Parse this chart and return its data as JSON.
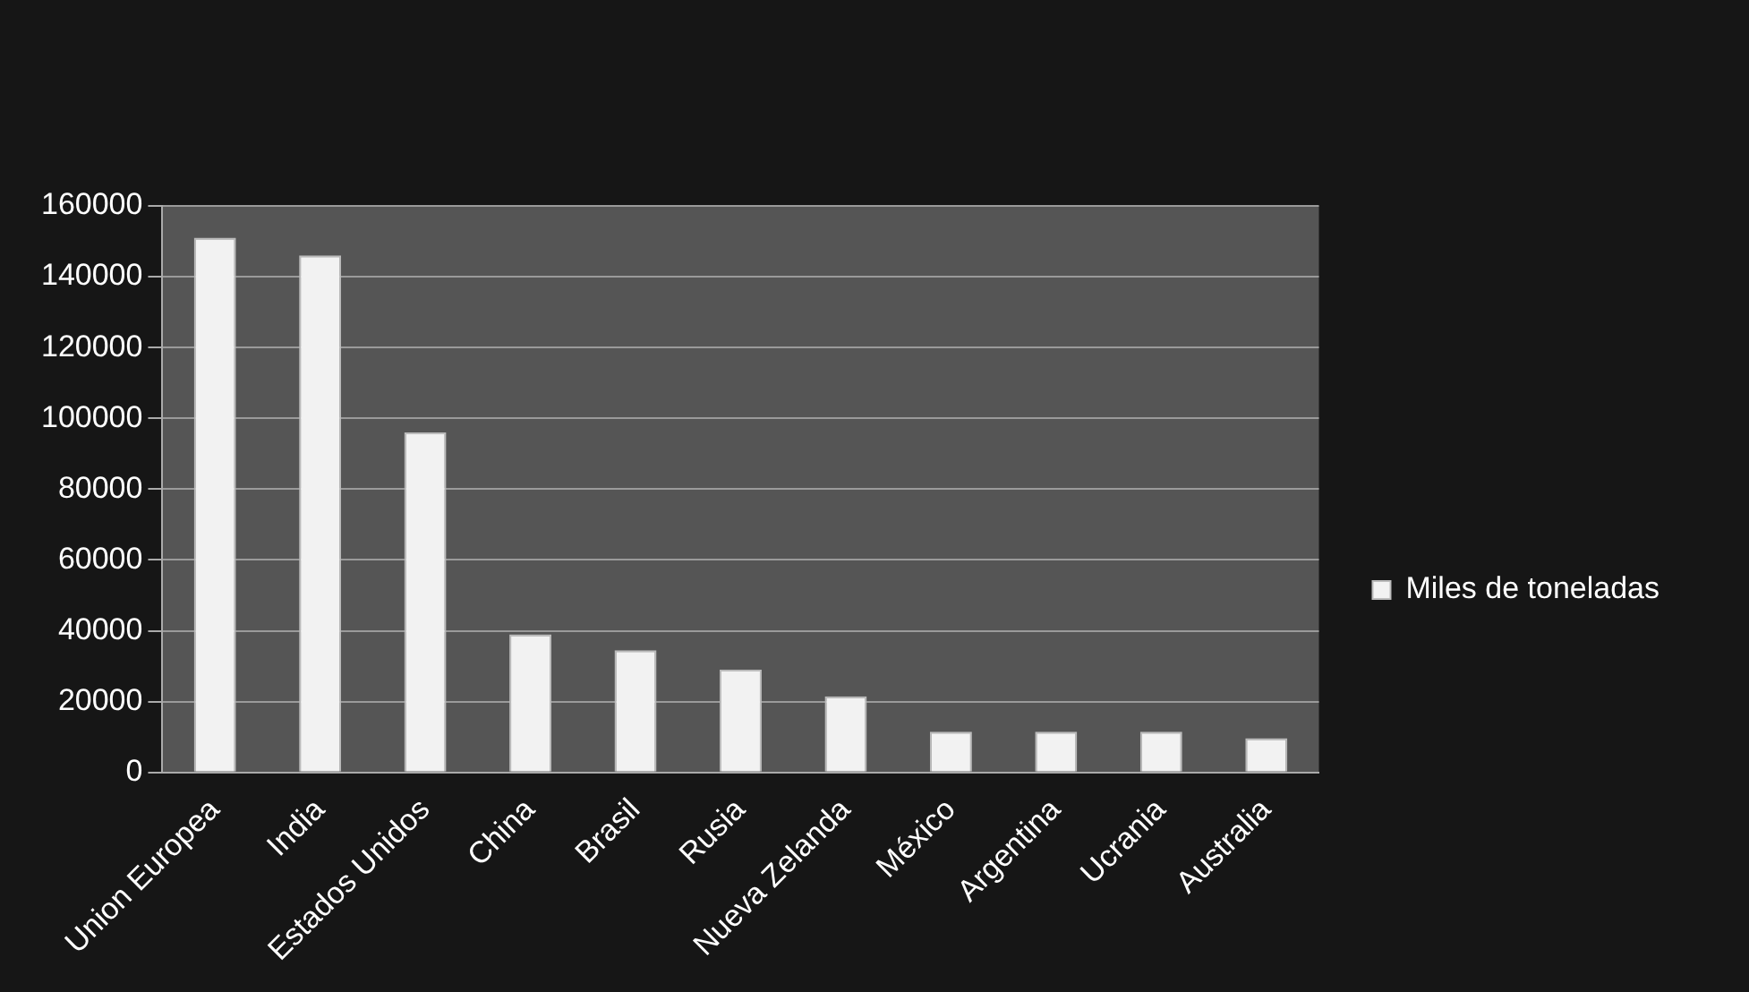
{
  "chart_data": {
    "type": "bar",
    "categories": [
      "Union Europea",
      "India",
      "Estados Unidos",
      "China",
      "Brasil",
      "Rusia",
      "Nueva Zelanda",
      "México",
      "Argentina",
      "Ucrania",
      "Australia"
    ],
    "series": [
      {
        "name": "Miles de toneladas",
        "color": "#f2f2f2",
        "values": [
          151000,
          146000,
          96000,
          39000,
          34500,
          29000,
          21500,
          11500,
          11500,
          11500,
          9700
        ]
      }
    ],
    "ylim": [
      0,
      160000
    ],
    "yticks": [
      0,
      20000,
      40000,
      60000,
      80000,
      100000,
      120000,
      140000,
      160000
    ],
    "grid": "y",
    "legend": "right"
  }
}
